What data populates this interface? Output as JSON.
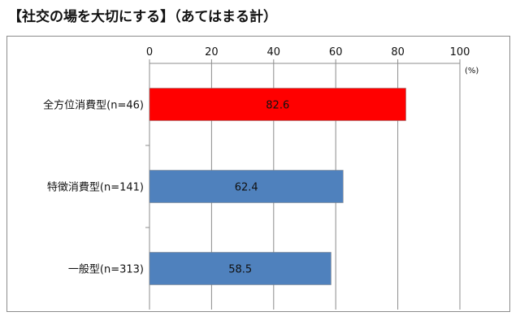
{
  "header": {
    "title": "【社交の場を大切にする】（あてはまる計）"
  },
  "chart_data": {
    "type": "bar",
    "orientation": "horizontal",
    "title": "【社交の場を大切にする】（あてはまる計）",
    "unit": "(%)",
    "categories": [
      "全方位消費型(n=46)",
      "特徴消費型(n=141)",
      "一般型(n=313)"
    ],
    "values": [
      82.6,
      62.4,
      58.5
    ],
    "value_labels": [
      "82.6",
      "62.4",
      "58.5"
    ],
    "bar_colors": [
      "#ff0000",
      "#4f81bd",
      "#4f81bd"
    ],
    "x_ticks": [
      "0",
      "20",
      "40",
      "60",
      "80",
      "100"
    ],
    "xlim": [
      0,
      100
    ],
    "axis_position": "top",
    "grid": true,
    "legend": "none"
  }
}
